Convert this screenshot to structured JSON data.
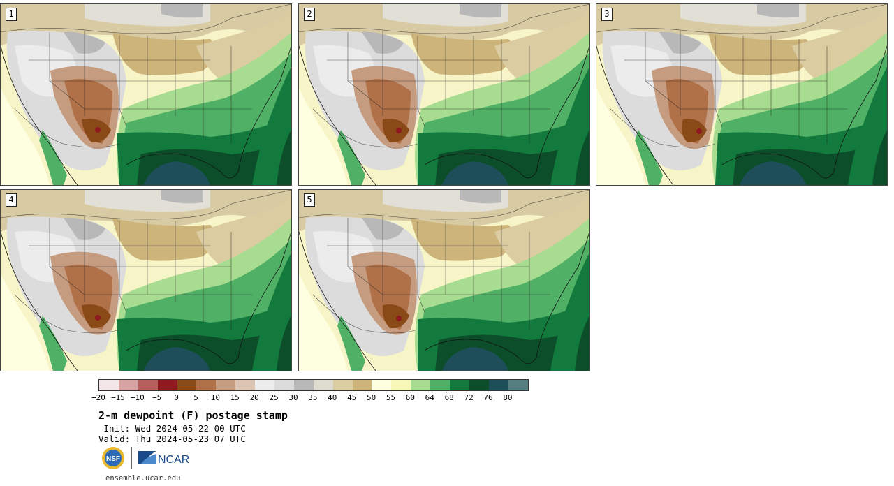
{
  "panels": [
    {
      "label": "1"
    },
    {
      "label": "2"
    },
    {
      "label": "3"
    },
    {
      "label": "4"
    },
    {
      "label": "5"
    }
  ],
  "colorbar": {
    "colors": [
      "#f2e6e6",
      "#d6a2a2",
      "#b55e5e",
      "#8e1a20",
      "#8a4a18",
      "#b07048",
      "#c69c80",
      "#dcc4b2",
      "#ececec",
      "#dcdcdc",
      "#b8b8b8",
      "#dedcd0",
      "#dccca2",
      "#ccb47a",
      "#fefee0",
      "#f8f8b8",
      "#a8dc90",
      "#50b066",
      "#127a3c",
      "#0c4e2a",
      "#1e4e5a",
      "#547e80"
    ],
    "ticks": [
      "−20",
      "−15",
      "−10",
      "−5",
      "0",
      "5",
      "10",
      "15",
      "20",
      "25",
      "30",
      "35",
      "40",
      "45",
      "50",
      "55",
      "60",
      "64",
      "68",
      "72",
      "76",
      "80"
    ]
  },
  "title": "2-m dewpoint (F) postage stamp",
  "init": " Init: Wed 2024-05-22 00 UTC",
  "valid": "Valid: Thu 2024-05-23 07 UTC",
  "logos": {
    "nsf": "NSF",
    "ncar": "NCAR"
  },
  "url": "ensemble.ucar.edu"
}
